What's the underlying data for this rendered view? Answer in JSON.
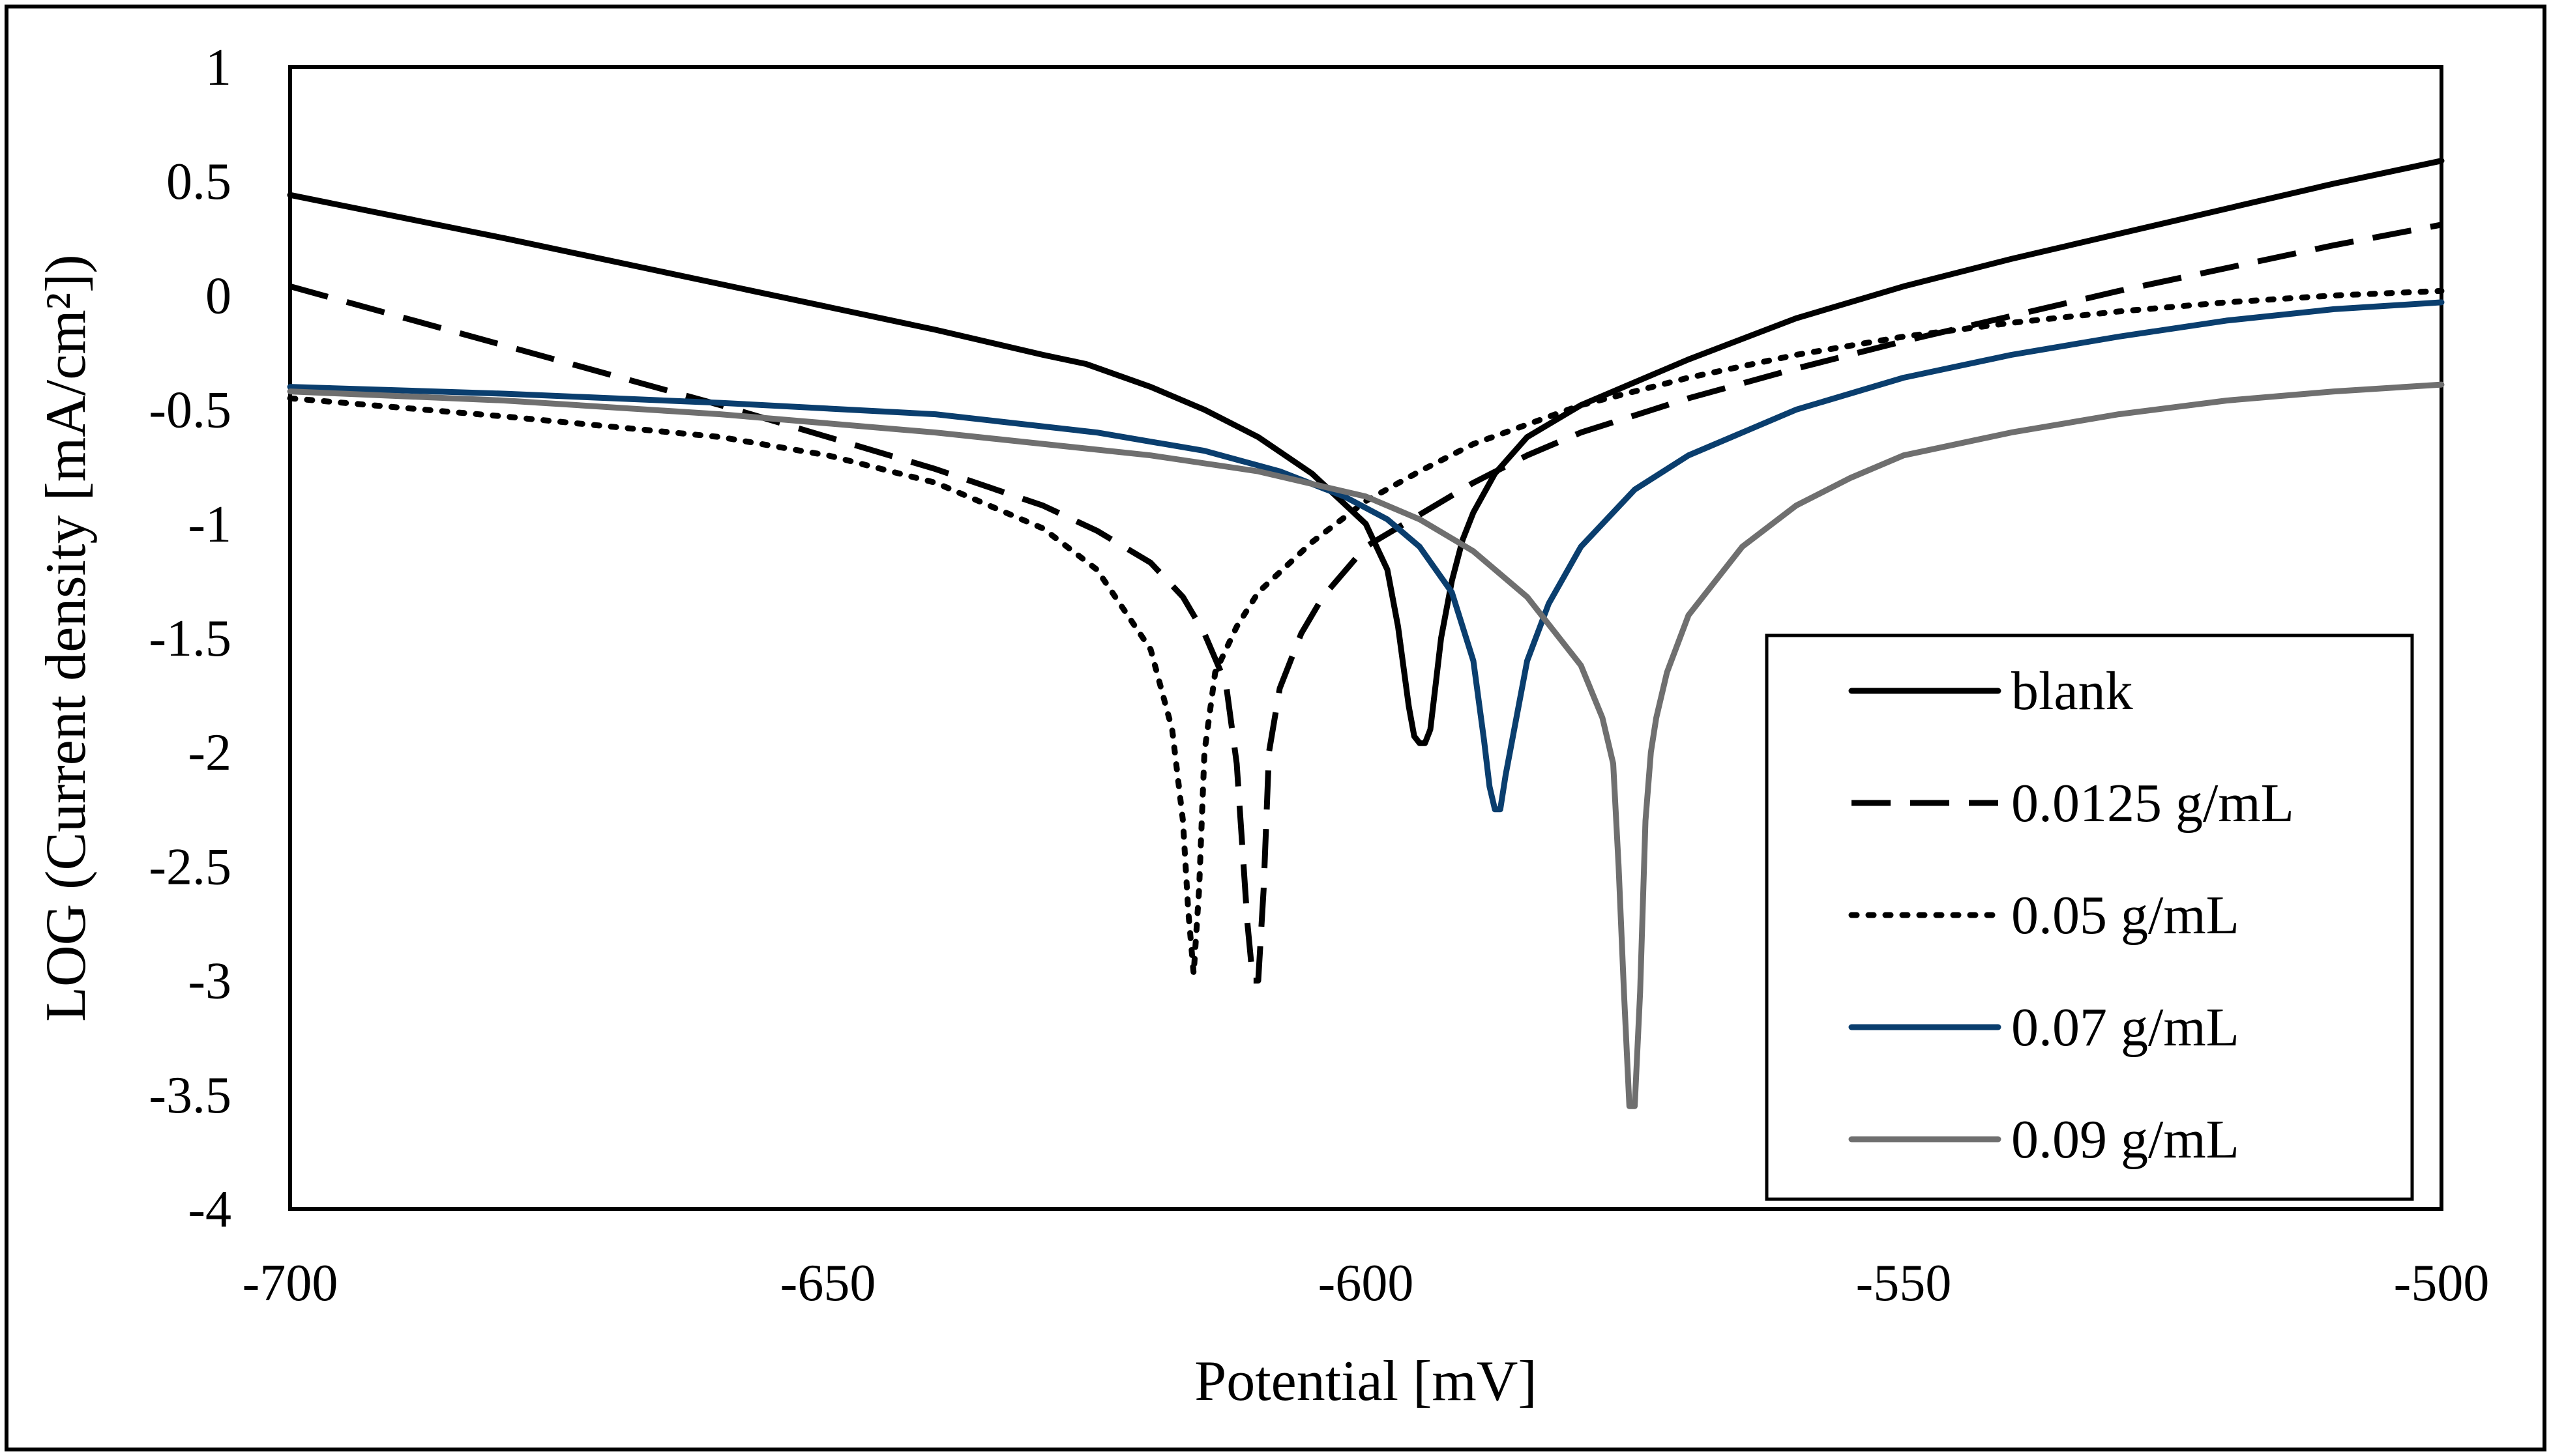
{
  "chart_data": {
    "type": "line",
    "title": "",
    "xlabel": "Potential [mV]",
    "ylabel": "LOG (Current density [mA/cm²])",
    "xlim": [
      -700,
      -500
    ],
    "ylim": [
      -4,
      1
    ],
    "xticks": [
      -700,
      -650,
      -600,
      -550,
      -500
    ],
    "xtick_labels": [
      "-700",
      "-650",
      "-600",
      "-550",
      "-500"
    ],
    "yticks": [
      1,
      0.5,
      0,
      -0.5,
      -1,
      -1.5,
      -2,
      -2.5,
      -3,
      -3.5,
      -4
    ],
    "ytick_labels": [
      "1",
      "0.5",
      "0",
      "-0.5",
      "-1",
      "-1.5",
      "-2",
      "-2.5",
      "-3",
      "-3.5",
      "-4"
    ],
    "grid": false,
    "legend_position": "bottom-right",
    "series": [
      {
        "name": "blank",
        "color": "#000000",
        "dash": "solid",
        "x": [
          -700,
          -680,
          -660,
          -640,
          -630,
          -628,
          -626,
          -620,
          -615,
          -610,
          -605,
          -600,
          -598,
          -597,
          -596,
          -595.5,
          -595,
          -594.5,
          -594,
          -593.5,
          -593,
          -592,
          -591,
          -590,
          -588,
          -585,
          -580,
          -570,
          -560,
          -550,
          -540,
          -530,
          -520,
          -510,
          -500
        ],
        "y": [
          0.44,
          0.25,
          0.05,
          -0.15,
          -0.26,
          -0.28,
          -0.3,
          -0.4,
          -0.5,
          -0.62,
          -0.78,
          -1.0,
          -1.2,
          -1.45,
          -1.8,
          -1.93,
          -1.96,
          -1.96,
          -1.9,
          -1.7,
          -1.5,
          -1.25,
          -1.07,
          -0.95,
          -0.78,
          -0.62,
          -0.48,
          -0.28,
          -0.1,
          0.04,
          0.16,
          0.27,
          0.38,
          0.49,
          0.59
        ]
      },
      {
        "name": "0.0125 g/mL",
        "color": "#000000",
        "dash": "dashed",
        "x": [
          -700,
          -680,
          -660,
          -650,
          -640,
          -630,
          -625,
          -620,
          -617,
          -615,
          -613,
          -612,
          -611.5,
          -611,
          -610.5,
          -610,
          -609.5,
          -609,
          -608,
          -606,
          -604,
          -600,
          -595,
          -590,
          -585,
          -580,
          -570,
          -560,
          -550,
          -540,
          -530,
          -520,
          -510,
          -500
        ],
        "y": [
          0.04,
          -0.22,
          -0.48,
          -0.62,
          -0.76,
          -0.92,
          -1.03,
          -1.17,
          -1.32,
          -1.48,
          -1.7,
          -2.05,
          -2.4,
          -2.75,
          -3.0,
          -3.0,
          -2.6,
          -2.0,
          -1.72,
          -1.48,
          -1.32,
          -1.1,
          -0.96,
          -0.82,
          -0.7,
          -0.6,
          -0.45,
          -0.32,
          -0.2,
          -0.09,
          0.02,
          0.12,
          0.22,
          0.31
        ]
      },
      {
        "name": "0.05 g/mL",
        "color": "#000000",
        "dash": "dotted",
        "x": [
          -700,
          -680,
          -660,
          -650,
          -640,
          -630,
          -625,
          -620,
          -618,
          -617,
          -616.5,
          -616,
          -615.5,
          -615,
          -614,
          -612,
          -610,
          -605,
          -600,
          -595,
          -590,
          -580,
          -570,
          -560,
          -550,
          -540,
          -530,
          -520,
          -510,
          -500
        ],
        "y": [
          -0.45,
          -0.53,
          -0.62,
          -0.7,
          -0.82,
          -1.02,
          -1.2,
          -1.55,
          -1.9,
          -2.3,
          -2.7,
          -2.97,
          -2.6,
          -2.0,
          -1.65,
          -1.45,
          -1.3,
          -1.08,
          -0.9,
          -0.77,
          -0.65,
          -0.48,
          -0.36,
          -0.26,
          -0.18,
          -0.12,
          -0.07,
          -0.03,
          0.0,
          0.02
        ]
      },
      {
        "name": "0.07 g/mL",
        "color": "#0a3e6e",
        "dash": "solid",
        "x": [
          -700,
          -680,
          -660,
          -640,
          -625,
          -615,
          -608,
          -602,
          -598,
          -595,
          -592,
          -590,
          -589,
          -588.5,
          -588,
          -587.5,
          -587,
          -586,
          -585,
          -583,
          -580,
          -575,
          -570,
          -560,
          -550,
          -540,
          -530,
          -520,
          -510,
          -500
        ],
        "y": [
          -0.4,
          -0.43,
          -0.47,
          -0.52,
          -0.6,
          -0.68,
          -0.77,
          -0.88,
          -0.98,
          -1.1,
          -1.3,
          -1.6,
          -1.95,
          -2.15,
          -2.25,
          -2.25,
          -2.1,
          -1.85,
          -1.6,
          -1.35,
          -1.1,
          -0.85,
          -0.7,
          -0.5,
          -0.36,
          -0.26,
          -0.18,
          -0.11,
          -0.06,
          -0.03
        ]
      },
      {
        "name": "0.09 g/mL",
        "color": "#6f6f6f",
        "dash": "solid",
        "x": [
          -700,
          -680,
          -660,
          -640,
          -620,
          -610,
          -600,
          -595,
          -590,
          -585,
          -580,
          -578,
          -577,
          -576.5,
          -576,
          -575.5,
          -575,
          -574.5,
          -574,
          -573.5,
          -573,
          -572,
          -570,
          -565,
          -560,
          -555,
          -550,
          -540,
          -530,
          -520,
          -510,
          -500
        ],
        "y": [
          -0.42,
          -0.46,
          -0.52,
          -0.6,
          -0.7,
          -0.77,
          -0.88,
          -0.98,
          -1.12,
          -1.32,
          -1.62,
          -1.85,
          -2.05,
          -2.5,
          -3.05,
          -3.55,
          -3.55,
          -3.05,
          -2.3,
          -2.0,
          -1.85,
          -1.65,
          -1.4,
          -1.1,
          -0.92,
          -0.8,
          -0.7,
          -0.6,
          -0.52,
          -0.46,
          -0.42,
          -0.39
        ]
      }
    ]
  }
}
